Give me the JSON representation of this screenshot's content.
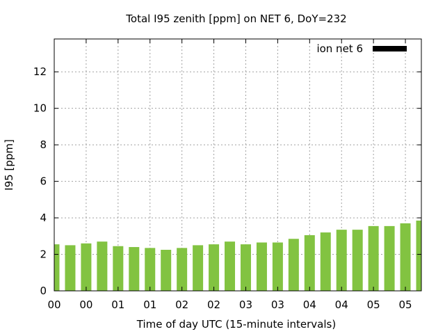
{
  "chart_data": {
    "type": "bar",
    "title": "Total I95 zenith [ppm] on NET 6, DoY=232",
    "xlabel": "Time of day UTC (15-minute intervals)",
    "ylabel": "I95 [ppm]",
    "ylim": [
      0,
      13.8
    ],
    "yticks": [
      0,
      2,
      4,
      6,
      8,
      10,
      12
    ],
    "xlim": [
      0,
      23
    ],
    "xtick_labels": [
      "00",
      "00",
      "01",
      "01",
      "02",
      "02",
      "03",
      "03",
      "04",
      "04",
      "05",
      "05"
    ],
    "grid": true,
    "legend_position": "top-right",
    "series": [
      {
        "name": "ion net 6",
        "color": "#82c341",
        "legend_color": "#000000",
        "values": [
          2.55,
          2.5,
          2.6,
          2.7,
          2.45,
          2.4,
          2.35,
          2.25,
          2.35,
          2.5,
          2.55,
          2.7,
          2.55,
          2.65,
          2.65,
          2.85,
          3.05,
          3.2,
          3.35,
          3.35,
          3.55,
          3.55,
          3.7,
          3.85
        ]
      }
    ]
  }
}
